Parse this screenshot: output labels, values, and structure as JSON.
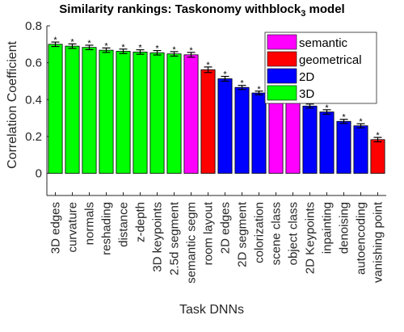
{
  "chart_data": {
    "type": "bar",
    "title_prefix": "Similarity rankings: Taskonomy withblock",
    "title_subscript": "3",
    "title_suffix": " model",
    "xlabel": "Task DNNs",
    "ylabel": "Correlation Coefficient",
    "ylim": [
      -0.12,
      0.8
    ],
    "yticks": [
      0,
      0.2,
      0.4,
      0.6,
      0.8
    ],
    "grid": false,
    "legend_position": "top-right",
    "significance_marker": "*",
    "groups": {
      "semantic": {
        "label": "semantic",
        "color": "#ff00ff"
      },
      "geometrical": {
        "label": "geometrical",
        "color": "#ff0000"
      },
      "2D": {
        "label": "2D",
        "color": "#0000ff"
      },
      "3D": {
        "label": "3D",
        "color": "#00ff00"
      }
    },
    "legend_order": [
      "semantic",
      "geometrical",
      "2D",
      "3D"
    ],
    "bars": [
      {
        "category": "3D edges",
        "value": 0.7,
        "error": 0.012,
        "group": "3D"
      },
      {
        "category": "curvature",
        "value": 0.69,
        "error": 0.012,
        "group": "3D"
      },
      {
        "category": "normals",
        "value": 0.683,
        "error": 0.012,
        "group": "3D"
      },
      {
        "category": "reshading",
        "value": 0.668,
        "error": 0.012,
        "group": "3D"
      },
      {
        "category": "distance",
        "value": 0.662,
        "error": 0.012,
        "group": "3D"
      },
      {
        "category": "z-depth",
        "value": 0.658,
        "error": 0.012,
        "group": "3D"
      },
      {
        "category": "3D keypoints",
        "value": 0.654,
        "error": 0.012,
        "group": "3D"
      },
      {
        "category": "2.5d segment",
        "value": 0.648,
        "error": 0.012,
        "group": "3D"
      },
      {
        "category": "semantic segm",
        "value": 0.643,
        "error": 0.013,
        "group": "semantic"
      },
      {
        "category": "room layout",
        "value": 0.562,
        "error": 0.015,
        "group": "geometrical"
      },
      {
        "category": "2D edges",
        "value": 0.513,
        "error": 0.013,
        "group": "2D"
      },
      {
        "category": "2D segment",
        "value": 0.466,
        "error": 0.011,
        "group": "2D"
      },
      {
        "category": "colorization",
        "value": 0.436,
        "error": 0.01,
        "group": "2D"
      },
      {
        "category": "scene class",
        "value": 0.45,
        "error": 0.012,
        "group": "semantic"
      },
      {
        "category": "object class",
        "value": 0.43,
        "error": 0.012,
        "group": "semantic"
      },
      {
        "category": "2D Keypoints",
        "value": 0.365,
        "error": 0.011,
        "group": "2D"
      },
      {
        "category": "inpainting",
        "value": 0.333,
        "error": 0.012,
        "group": "2D"
      },
      {
        "category": "denoising",
        "value": 0.282,
        "error": 0.011,
        "group": "2D"
      },
      {
        "category": "autoencoding",
        "value": 0.258,
        "error": 0.011,
        "group": "2D"
      },
      {
        "category": "vanishing point",
        "value": 0.183,
        "error": 0.012,
        "group": "geometrical"
      }
    ]
  }
}
